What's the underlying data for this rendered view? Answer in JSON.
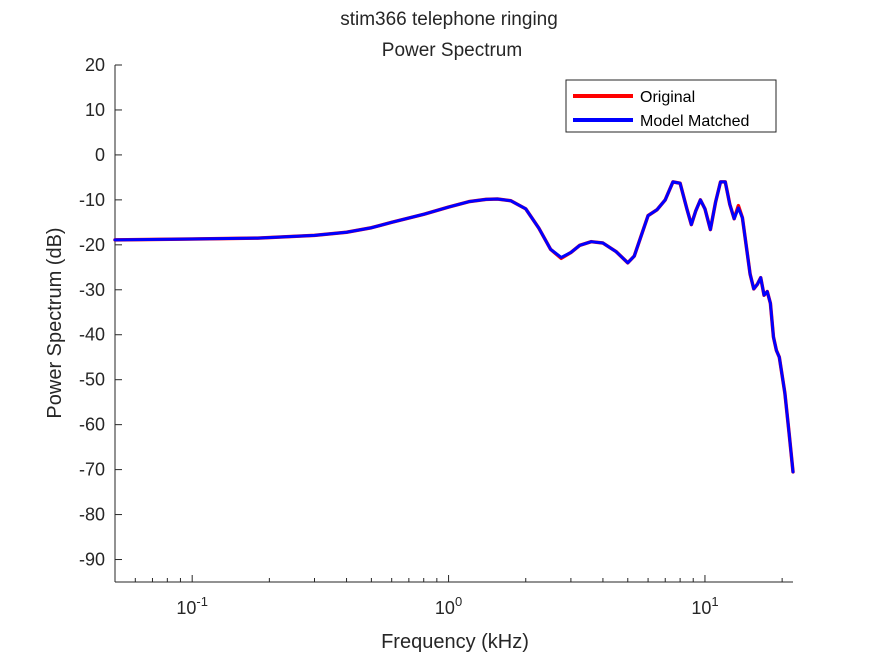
{
  "chart_data": {
    "type": "line",
    "title": "stim366 telephone ringing",
    "subtitle": "Power Spectrum",
    "xlabel": "Frequency (kHz)",
    "ylabel": "Power Spectrum (dB)",
    "xscale": "log",
    "xlim": [
      0.05,
      22.05
    ],
    "ylim": [
      -95,
      20
    ],
    "x_ticks": [
      {
        "value": 0.1,
        "base": "10",
        "exp": "-1"
      },
      {
        "value": 1,
        "base": "10",
        "exp": "0"
      },
      {
        "value": 10,
        "base": "10",
        "exp": "1"
      }
    ],
    "y_ticks": [
      20,
      10,
      0,
      -10,
      -20,
      -30,
      -40,
      -50,
      -60,
      -70,
      -80,
      -90
    ],
    "grid": false,
    "legend_position": "top-right",
    "series": [
      {
        "name": "Original",
        "color": "#ff0000",
        "points": [
          [
            0.05,
            -18.9
          ],
          [
            0.1,
            -18.7
          ],
          [
            0.18,
            -18.5
          ],
          [
            0.3,
            -17.9
          ],
          [
            0.4,
            -17.2
          ],
          [
            0.5,
            -16.2
          ],
          [
            0.6,
            -15.0
          ],
          [
            0.8,
            -13.2
          ],
          [
            1.0,
            -11.6
          ],
          [
            1.2,
            -10.4
          ],
          [
            1.4,
            -9.9
          ],
          [
            1.55,
            -9.8
          ],
          [
            1.75,
            -10.2
          ],
          [
            2.0,
            -12.0
          ],
          [
            2.25,
            -16.3
          ],
          [
            2.5,
            -21.0
          ],
          [
            2.75,
            -23.0
          ],
          [
            3.0,
            -21.7
          ],
          [
            3.25,
            -20.1
          ],
          [
            3.6,
            -19.3
          ],
          [
            4.0,
            -19.6
          ],
          [
            4.5,
            -21.5
          ],
          [
            5.0,
            -24.0
          ],
          [
            5.3,
            -22.5
          ],
          [
            5.6,
            -18.5
          ],
          [
            6.0,
            -13.5
          ],
          [
            6.5,
            -12.2
          ],
          [
            7.0,
            -10.0
          ],
          [
            7.5,
            -6.0
          ],
          [
            8.0,
            -6.3
          ],
          [
            8.5,
            -12.0
          ],
          [
            8.85,
            -15.5
          ],
          [
            9.2,
            -12.5
          ],
          [
            9.6,
            -10.0
          ],
          [
            10.0,
            -12.0
          ],
          [
            10.5,
            -16.6
          ],
          [
            11.0,
            -10.5
          ],
          [
            11.5,
            -6.0
          ],
          [
            12.0,
            -6.0
          ],
          [
            12.5,
            -11.0
          ],
          [
            13.0,
            -14.2
          ],
          [
            13.5,
            -11.3
          ],
          [
            14.0,
            -14.0
          ],
          [
            15.0,
            -26.5
          ],
          [
            15.5,
            -29.8
          ],
          [
            16.0,
            -28.8
          ],
          [
            16.5,
            -27.3
          ],
          [
            17.0,
            -31.2
          ],
          [
            17.5,
            -30.4
          ],
          [
            18.0,
            -33.0
          ],
          [
            18.5,
            -40.5
          ],
          [
            19.0,
            -43.5
          ],
          [
            19.5,
            -45.0
          ],
          [
            20.5,
            -53.0
          ],
          [
            21.3,
            -62.0
          ],
          [
            22.05,
            -70.5
          ]
        ]
      },
      {
        "name": "Model Matched",
        "color": "#0000ff",
        "points": [
          [
            0.05,
            -18.9
          ],
          [
            0.1,
            -18.7
          ],
          [
            0.18,
            -18.5
          ],
          [
            0.3,
            -17.9
          ],
          [
            0.4,
            -17.2
          ],
          [
            0.5,
            -16.2
          ],
          [
            0.6,
            -15.0
          ],
          [
            0.8,
            -13.2
          ],
          [
            1.0,
            -11.6
          ],
          [
            1.2,
            -10.4
          ],
          [
            1.4,
            -9.9
          ],
          [
            1.55,
            -9.8
          ],
          [
            1.75,
            -10.2
          ],
          [
            2.0,
            -12.0
          ],
          [
            2.25,
            -16.3
          ],
          [
            2.5,
            -21.0
          ],
          [
            2.75,
            -22.8
          ],
          [
            3.0,
            -21.7
          ],
          [
            3.25,
            -20.1
          ],
          [
            3.6,
            -19.3
          ],
          [
            4.0,
            -19.6
          ],
          [
            4.5,
            -21.5
          ],
          [
            5.0,
            -24.0
          ],
          [
            5.3,
            -22.5
          ],
          [
            5.6,
            -18.5
          ],
          [
            6.0,
            -13.5
          ],
          [
            6.5,
            -12.2
          ],
          [
            7.0,
            -10.0
          ],
          [
            7.5,
            -6.0
          ],
          [
            8.0,
            -6.3
          ],
          [
            8.5,
            -12.0
          ],
          [
            8.85,
            -15.5
          ],
          [
            9.2,
            -12.5
          ],
          [
            9.6,
            -10.0
          ],
          [
            10.0,
            -12.0
          ],
          [
            10.5,
            -16.6
          ],
          [
            11.0,
            -10.5
          ],
          [
            11.5,
            -6.0
          ],
          [
            12.0,
            -6.0
          ],
          [
            12.5,
            -11.0
          ],
          [
            13.0,
            -14.2
          ],
          [
            13.5,
            -11.8
          ],
          [
            14.0,
            -14.0
          ],
          [
            15.0,
            -26.5
          ],
          [
            15.5,
            -29.8
          ],
          [
            16.0,
            -28.8
          ],
          [
            16.5,
            -27.3
          ],
          [
            17.0,
            -31.2
          ],
          [
            17.5,
            -30.4
          ],
          [
            18.0,
            -33.0
          ],
          [
            18.5,
            -40.5
          ],
          [
            19.0,
            -43.5
          ],
          [
            19.5,
            -45.0
          ],
          [
            20.5,
            -53.0
          ],
          [
            21.3,
            -62.0
          ],
          [
            22.05,
            -70.5
          ]
        ]
      }
    ]
  }
}
